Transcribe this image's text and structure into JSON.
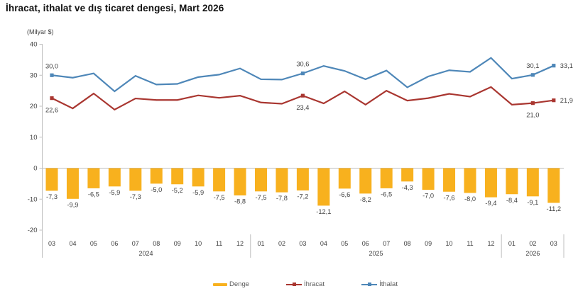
{
  "page": {
    "title": "İhracat, ithalat ve dış ticaret dengesi, Mart 2026"
  },
  "chart_data": {
    "type": "bar+line combo",
    "title": "İhracat, ithalat ve dış ticaret dengesi, Mart 2026",
    "unit_label": "(Milyar $)",
    "ylim": [
      -20,
      40
    ],
    "yticks": [
      40,
      30,
      20,
      10,
      0,
      -10,
      -20
    ],
    "grid": false,
    "decimal_separator": ",",
    "x_months": [
      "03",
      "04",
      "05",
      "06",
      "07",
      "08",
      "09",
      "10",
      "11",
      "12",
      "01",
      "02",
      "03",
      "04",
      "05",
      "06",
      "07",
      "08",
      "09",
      "10",
      "11",
      "12",
      "01",
      "02",
      "03"
    ],
    "year_groups": [
      {
        "label": "2024",
        "start": 0,
        "count": 10
      },
      {
        "label": "2025",
        "start": 10,
        "count": 12
      },
      {
        "label": "2026",
        "start": 22,
        "count": 3
      }
    ],
    "series": [
      {
        "name": "Denge",
        "type": "bar",
        "color": "#F8B11E",
        "label_all_points": true,
        "values": [
          -7.3,
          -9.9,
          -6.5,
          -5.9,
          -7.3,
          -5.0,
          -5.2,
          -5.9,
          -7.5,
          -8.8,
          -7.5,
          -7.8,
          -7.2,
          -12.1,
          -6.6,
          -8.2,
          -6.5,
          -4.3,
          -7.0,
          -7.6,
          -8.0,
          -9.4,
          -8.4,
          -9.1,
          -11.2
        ]
      },
      {
        "name": "İhracat",
        "type": "line",
        "color": "#A93630",
        "values": [
          22.6,
          19.3,
          24.1,
          18.9,
          22.5,
          22.0,
          22.0,
          23.5,
          22.7,
          23.4,
          21.2,
          20.8,
          23.4,
          20.9,
          24.8,
          20.5,
          25.0,
          21.8,
          22.6,
          24.0,
          23.1,
          26.2,
          20.5,
          21.0,
          21.9
        ],
        "labeled_points": [
          {
            "index": 0,
            "value_label": "22,6",
            "position": "below"
          },
          {
            "index": 12,
            "value_label": "23,4",
            "position": "below"
          },
          {
            "index": 23,
            "value_label": "21,0",
            "position": "below"
          },
          {
            "index": 24,
            "value_label": "21,9",
            "position": "right"
          }
        ]
      },
      {
        "name": "İthalat",
        "type": "line",
        "color": "#4E87B8",
        "values": [
          30.0,
          29.2,
          30.6,
          24.8,
          29.8,
          27.0,
          27.2,
          29.4,
          30.2,
          32.2,
          28.7,
          28.6,
          30.6,
          33.0,
          31.4,
          28.7,
          31.5,
          26.1,
          29.6,
          31.6,
          31.1,
          35.6,
          28.9,
          30.1,
          33.1
        ],
        "labeled_points": [
          {
            "index": 0,
            "value_label": "30,0",
            "position": "above"
          },
          {
            "index": 12,
            "value_label": "30,6",
            "position": "above"
          },
          {
            "index": 23,
            "value_label": "30,1",
            "position": "above"
          },
          {
            "index": 24,
            "value_label": "33,1",
            "position": "right"
          }
        ]
      }
    ],
    "legend": [
      {
        "label": "Denge",
        "color": "#F8B11E",
        "swatch": "bar"
      },
      {
        "label": "İhracat",
        "color": "#A93630",
        "swatch": "line-marker"
      },
      {
        "label": "İthalat",
        "color": "#4E87B8",
        "swatch": "line-marker"
      }
    ],
    "legend_position": "bottom-center"
  }
}
